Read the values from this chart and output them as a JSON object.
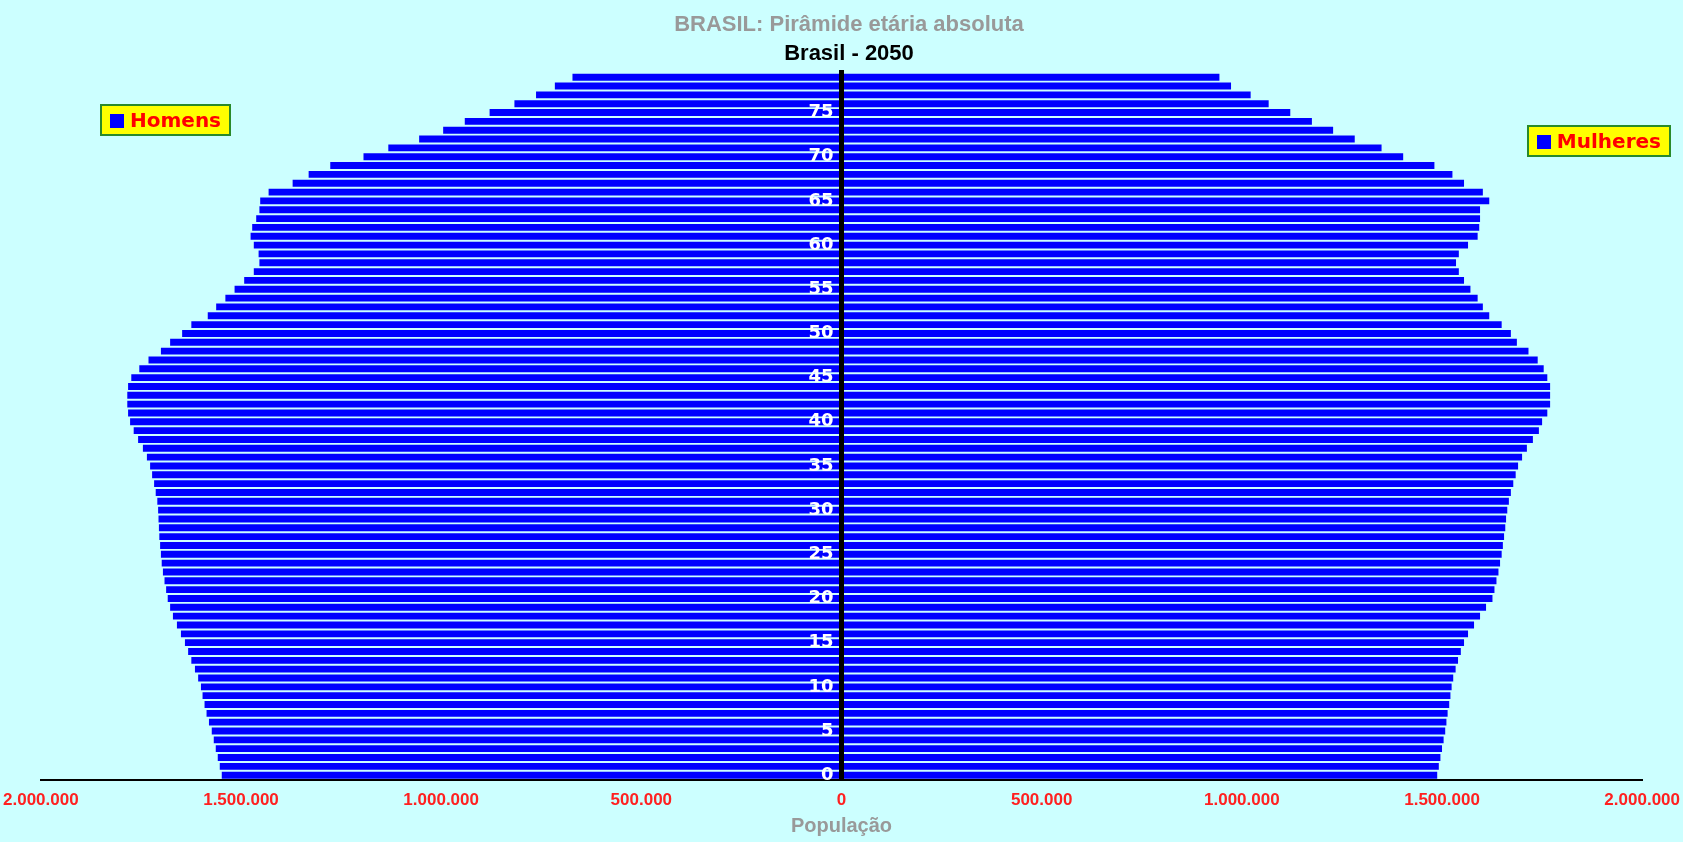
{
  "chart_data": {
    "type": "bar",
    "orientation": "horizontal",
    "stacked": true,
    "title": "BRASIL: Pirâmide etária absoluta",
    "subtitle": "Brasil - 2050",
    "xlabel": "População",
    "categories": [
      null,
      null,
      null,
      null,
      "75",
      null,
      null,
      null,
      null,
      "70",
      null,
      null,
      null,
      null,
      "65",
      null,
      null,
      null,
      null,
      "60",
      null,
      null,
      null,
      null,
      "55",
      null,
      null,
      null,
      null,
      "50",
      null,
      null,
      null,
      null,
      "45",
      null,
      null,
      null,
      null,
      "40",
      null,
      null,
      null,
      null,
      "35",
      null,
      null,
      null,
      null,
      "30",
      null,
      null,
      null,
      null,
      "25",
      null,
      null,
      null,
      null,
      "20",
      null,
      null,
      null,
      null,
      "15",
      null,
      null,
      null,
      null,
      "10",
      null,
      null,
      null,
      null,
      "5",
      null,
      null,
      null,
      null,
      "0"
    ],
    "series": [
      {
        "name": "Homens",
        "color": "#0000ff",
        "values": [
          -672000,
          -716000,
          -763000,
          -817000,
          -879000,
          -941000,
          -995000,
          -1055000,
          -1132000,
          -1194000,
          -1277000,
          -1331000,
          -1371000,
          -1431000,
          -1452000,
          -1454000,
          -1462000,
          -1472000,
          -1476000,
          -1468000,
          -1456000,
          -1454000,
          -1468000,
          -1492000,
          -1516000,
          -1539000,
          -1562000,
          -1583000,
          -1624000,
          -1647000,
          -1677000,
          -1700000,
          -1731000,
          -1754000,
          -1774000,
          -1782000,
          -1784000,
          -1784000,
          -1782000,
          -1777000,
          -1768000,
          -1757000,
          -1745000,
          -1735000,
          -1727000,
          -1722000,
          -1717000,
          -1713000,
          -1709000,
          -1707000,
          -1706000,
          -1705000,
          -1704000,
          -1702000,
          -1700000,
          -1698000,
          -1695000,
          -1691000,
          -1687000,
          -1683000,
          -1677000,
          -1670000,
          -1660000,
          -1650000,
          -1640000,
          -1632000,
          -1624000,
          -1615000,
          -1607000,
          -1600000,
          -1596000,
          -1591000,
          -1586000,
          -1580000,
          -1573000,
          -1568000,
          -1563000,
          -1558000,
          -1553000,
          -1548000
        ]
      },
      {
        "name": "Mulheres",
        "color": "#0000ff",
        "values": [
          944000,
          973000,
          1022000,
          1067000,
          1121000,
          1175000,
          1228000,
          1282000,
          1349000,
          1403000,
          1481000,
          1526000,
          1555000,
          1602000,
          1618000,
          1595000,
          1595000,
          1593000,
          1589000,
          1565000,
          1542000,
          1535000,
          1542000,
          1555000,
          1571000,
          1589000,
          1602000,
          1618000,
          1649000,
          1672000,
          1687000,
          1716000,
          1739000,
          1754000,
          1763000,
          1770000,
          1770000,
          1770000,
          1763000,
          1750000,
          1742000,
          1727000,
          1712000,
          1700000,
          1690000,
          1684000,
          1678000,
          1672000,
          1667000,
          1663000,
          1660000,
          1658000,
          1655000,
          1652000,
          1649000,
          1645000,
          1641000,
          1636000,
          1631000,
          1626000,
          1610000,
          1595000,
          1580000,
          1565000,
          1555000,
          1547000,
          1540000,
          1534000,
          1528000,
          1524000,
          1521000,
          1518000,
          1514000,
          1511000,
          1508000,
          1504000,
          1500000,
          1496000,
          1492000,
          1488000
        ]
      }
    ],
    "legend": "top",
    "xlim": [
      -2000000,
      2000000
    ],
    "xticks": [
      {
        "value": -2000000,
        "label": "2.000.000"
      },
      {
        "value": -1500000,
        "label": "1.500.000"
      },
      {
        "value": -1000000,
        "label": "1.000.000"
      },
      {
        "value": -500000,
        "label": "500.000"
      },
      0,
      {
        "value": 500000,
        "label": "500.000"
      },
      {
        "value": 1000000,
        "label": "1.000.000"
      },
      {
        "value": 1500000,
        "label": "1.500.000"
      },
      {
        "value": 2000000,
        "label": "2.000.000"
      }
    ]
  }
}
